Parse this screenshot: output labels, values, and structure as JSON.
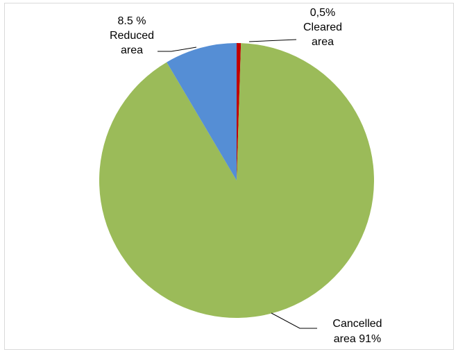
{
  "chart_data": {
    "type": "pie",
    "slices": [
      {
        "label": "Cleared area",
        "value": 0.5,
        "value_label": "0,5%",
        "color": "#c00000"
      },
      {
        "label": "Cancelled area",
        "value": 91,
        "value_label": "91%",
        "color": "#9bbb59"
      },
      {
        "label": "Reduced area",
        "value": 8.5,
        "value_label": "8.5 %",
        "color": "#558ed5"
      }
    ],
    "data_labels": [
      {
        "slice": 0,
        "lines": [
          "0,5%",
          "Cleared",
          "area"
        ]
      },
      {
        "slice": 1,
        "lines": [
          "Cancelled",
          "area 91%"
        ]
      },
      {
        "slice": 2,
        "lines": [
          "8.5 %",
          "Reduced",
          "area"
        ]
      }
    ],
    "start_angle_deg": 0,
    "direction": "clockwise",
    "legend": "none"
  }
}
